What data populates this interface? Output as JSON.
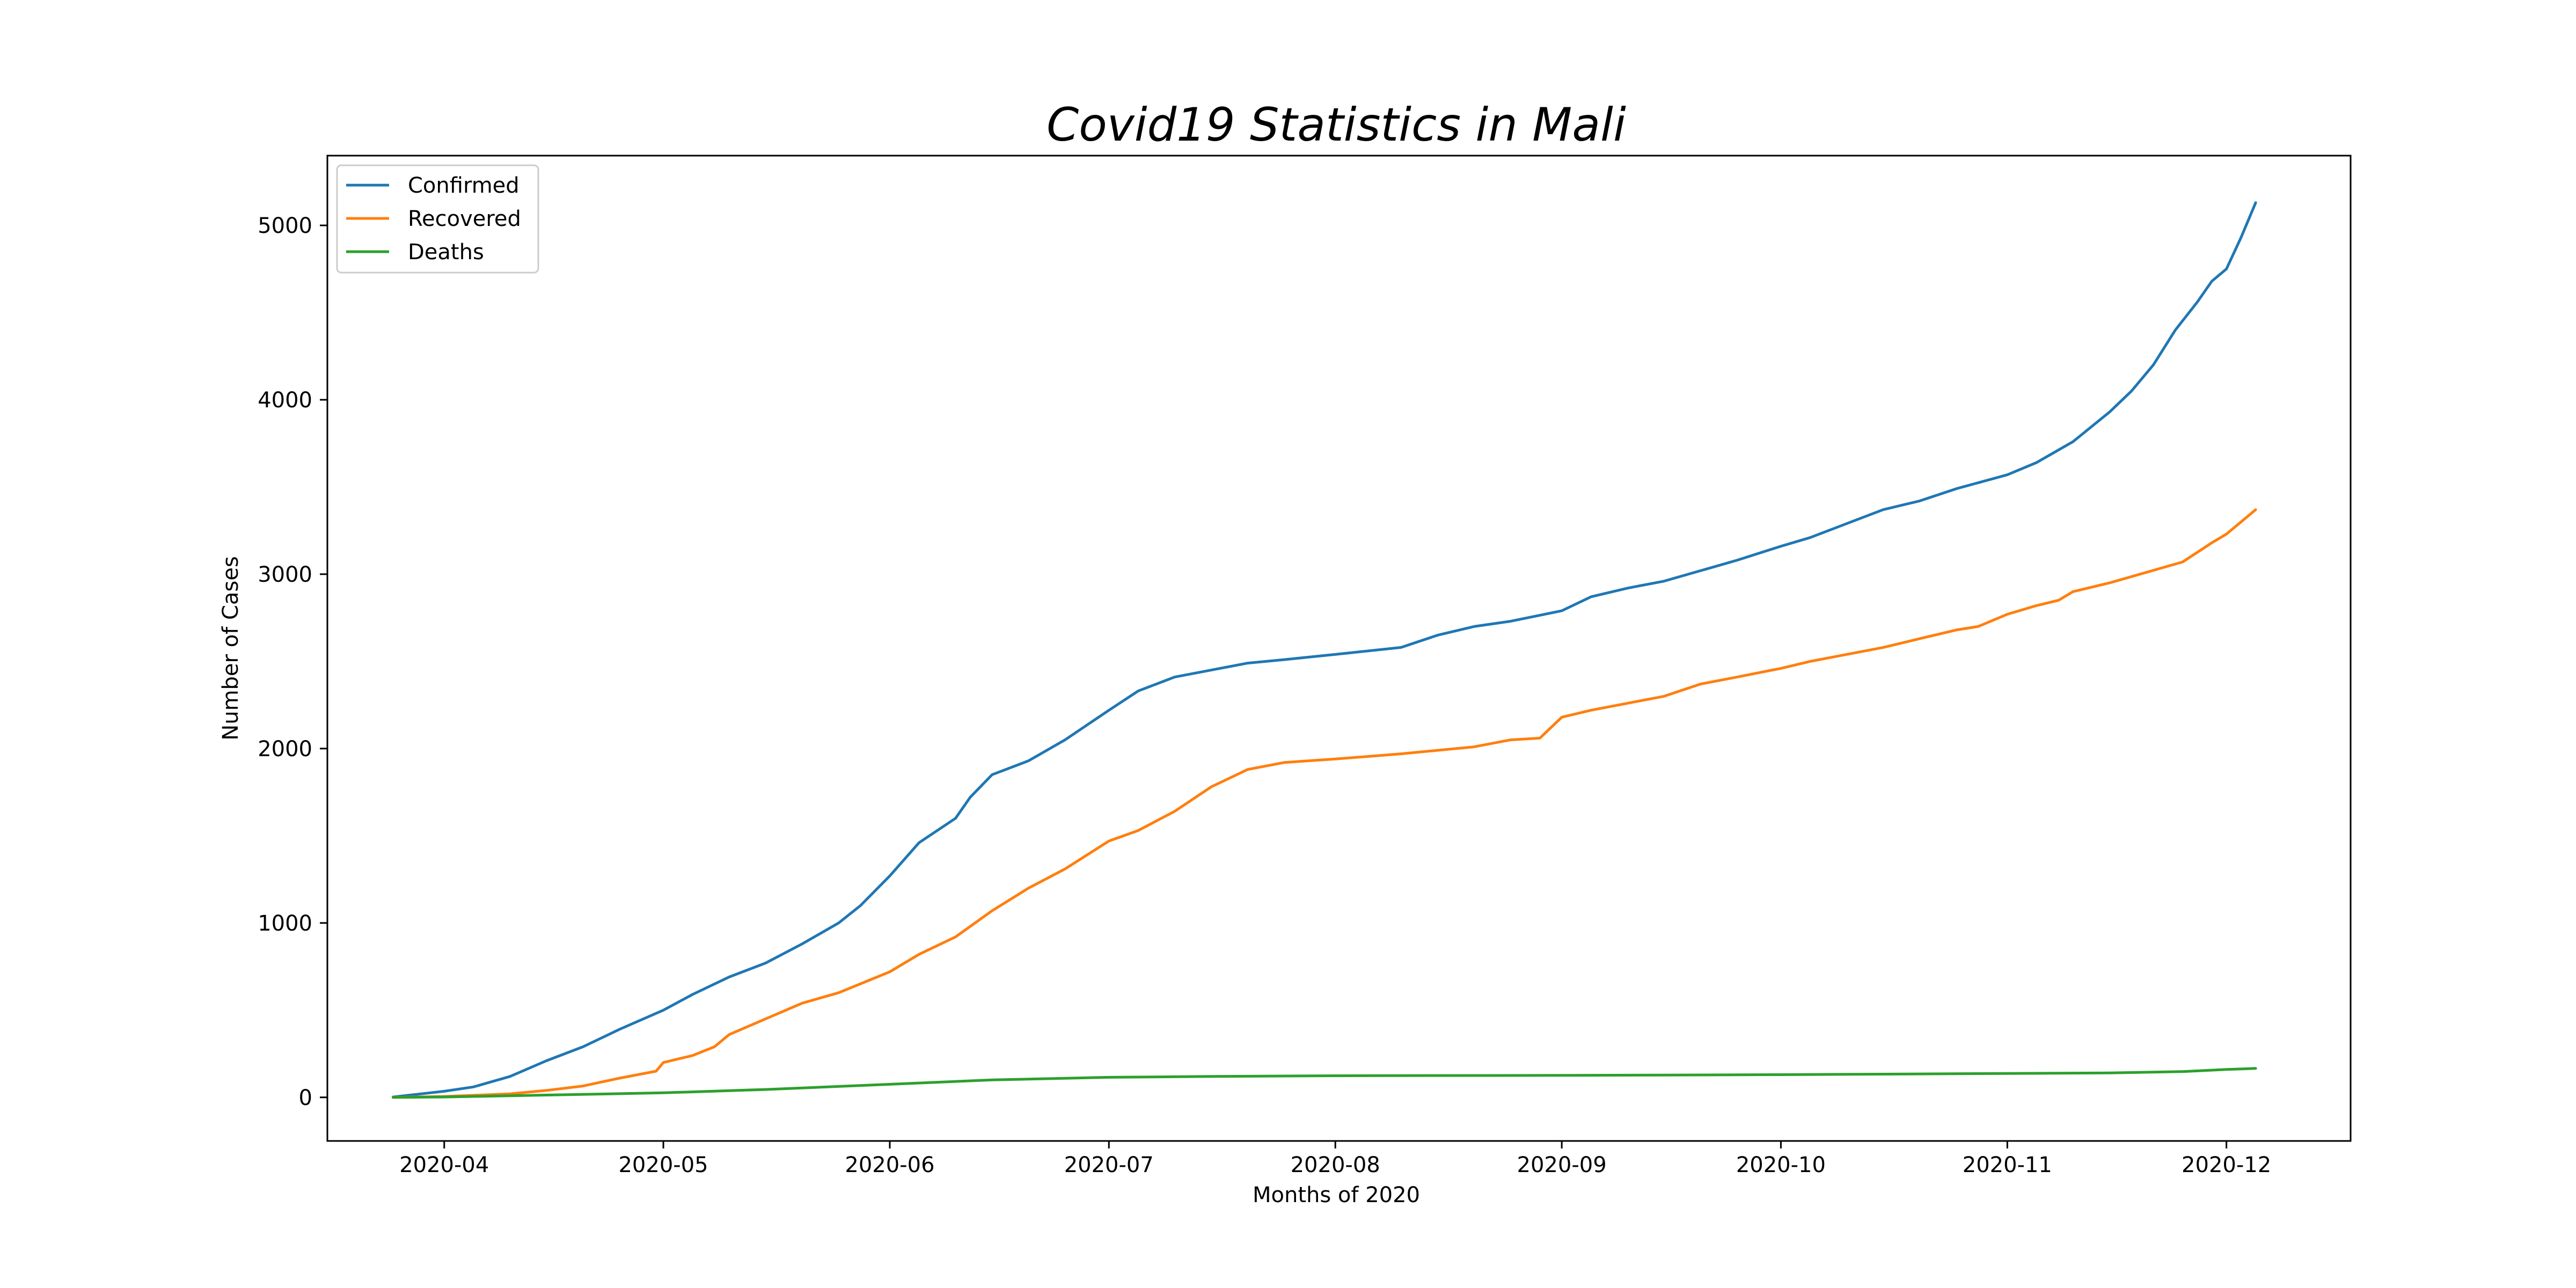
{
  "chart_data": {
    "type": "line",
    "title": "Covid19 Statistics in Mali",
    "xlabel": "Months of 2020",
    "ylabel": "Number of Cases",
    "x_ticks": [
      "2020-04",
      "2020-05",
      "2020-06",
      "2020-07",
      "2020-08",
      "2020-09",
      "2020-10",
      "2020-11",
      "2020-12"
    ],
    "x_tick_dates": [
      "2020-04-01",
      "2020-05-01",
      "2020-06-01",
      "2020-07-01",
      "2020-08-01",
      "2020-09-01",
      "2020-10-01",
      "2020-11-01",
      "2020-12-01"
    ],
    "y_ticks": [
      0,
      1000,
      2000,
      3000,
      4000,
      5000
    ],
    "xlim": [
      "2020-03-16",
      "2020-12-18"
    ],
    "ylim": [
      -250,
      5400
    ],
    "grid": false,
    "legend_position": "top-left",
    "series": [
      {
        "name": "Confirmed",
        "color": "#1f77b4",
        "points": [
          [
            "2020-03-25",
            2
          ],
          [
            "2020-04-01",
            35
          ],
          [
            "2020-04-05",
            60
          ],
          [
            "2020-04-10",
            120
          ],
          [
            "2020-04-15",
            210
          ],
          [
            "2020-04-20",
            290
          ],
          [
            "2020-04-25",
            390
          ],
          [
            "2020-05-01",
            500
          ],
          [
            "2020-05-05",
            590
          ],
          [
            "2020-05-10",
            690
          ],
          [
            "2020-05-15",
            770
          ],
          [
            "2020-05-20",
            880
          ],
          [
            "2020-05-25",
            1000
          ],
          [
            "2020-05-28",
            1100
          ],
          [
            "2020-06-01",
            1270
          ],
          [
            "2020-06-05",
            1460
          ],
          [
            "2020-06-10",
            1600
          ],
          [
            "2020-06-12",
            1720
          ],
          [
            "2020-06-15",
            1850
          ],
          [
            "2020-06-20",
            1930
          ],
          [
            "2020-06-25",
            2050
          ],
          [
            "2020-07-01",
            2220
          ],
          [
            "2020-07-05",
            2330
          ],
          [
            "2020-07-10",
            2410
          ],
          [
            "2020-07-15",
            2450
          ],
          [
            "2020-07-20",
            2490
          ],
          [
            "2020-07-25",
            2510
          ],
          [
            "2020-08-01",
            2540
          ],
          [
            "2020-08-10",
            2580
          ],
          [
            "2020-08-15",
            2650
          ],
          [
            "2020-08-20",
            2700
          ],
          [
            "2020-08-25",
            2730
          ],
          [
            "2020-09-01",
            2790
          ],
          [
            "2020-09-05",
            2870
          ],
          [
            "2020-09-10",
            2920
          ],
          [
            "2020-09-15",
            2960
          ],
          [
            "2020-09-20",
            3020
          ],
          [
            "2020-09-25",
            3080
          ],
          [
            "2020-10-01",
            3160
          ],
          [
            "2020-10-05",
            3210
          ],
          [
            "2020-10-10",
            3290
          ],
          [
            "2020-10-15",
            3370
          ],
          [
            "2020-10-20",
            3420
          ],
          [
            "2020-10-25",
            3490
          ],
          [
            "2020-11-01",
            3570
          ],
          [
            "2020-11-05",
            3640
          ],
          [
            "2020-11-10",
            3760
          ],
          [
            "2020-11-15",
            3930
          ],
          [
            "2020-11-18",
            4050
          ],
          [
            "2020-11-21",
            4200
          ],
          [
            "2020-11-24",
            4400
          ],
          [
            "2020-11-27",
            4560
          ],
          [
            "2020-11-29",
            4680
          ],
          [
            "2020-12-01",
            4750
          ],
          [
            "2020-12-03",
            4930
          ],
          [
            "2020-12-05",
            5130
          ]
        ]
      },
      {
        "name": "Recovered",
        "color": "#ff7f0e",
        "points": [
          [
            "2020-03-25",
            0
          ],
          [
            "2020-04-01",
            5
          ],
          [
            "2020-04-10",
            20
          ],
          [
            "2020-04-15",
            40
          ],
          [
            "2020-04-20",
            65
          ],
          [
            "2020-04-25",
            110
          ],
          [
            "2020-04-30",
            150
          ],
          [
            "2020-05-01",
            200
          ],
          [
            "2020-05-05",
            240
          ],
          [
            "2020-05-08",
            290
          ],
          [
            "2020-05-10",
            360
          ],
          [
            "2020-05-15",
            450
          ],
          [
            "2020-05-20",
            540
          ],
          [
            "2020-05-25",
            600
          ],
          [
            "2020-06-01",
            720
          ],
          [
            "2020-06-05",
            820
          ],
          [
            "2020-06-10",
            920
          ],
          [
            "2020-06-15",
            1070
          ],
          [
            "2020-06-20",
            1200
          ],
          [
            "2020-06-25",
            1310
          ],
          [
            "2020-07-01",
            1470
          ],
          [
            "2020-07-05",
            1530
          ],
          [
            "2020-07-10",
            1640
          ],
          [
            "2020-07-15",
            1780
          ],
          [
            "2020-07-20",
            1880
          ],
          [
            "2020-07-25",
            1920
          ],
          [
            "2020-08-01",
            1940
          ],
          [
            "2020-08-10",
            1970
          ],
          [
            "2020-08-20",
            2010
          ],
          [
            "2020-08-25",
            2050
          ],
          [
            "2020-08-29",
            2060
          ],
          [
            "2020-09-01",
            2180
          ],
          [
            "2020-09-05",
            2220
          ],
          [
            "2020-09-10",
            2260
          ],
          [
            "2020-09-15",
            2300
          ],
          [
            "2020-09-20",
            2370
          ],
          [
            "2020-09-25",
            2410
          ],
          [
            "2020-10-01",
            2460
          ],
          [
            "2020-10-05",
            2500
          ],
          [
            "2020-10-10",
            2540
          ],
          [
            "2020-10-15",
            2580
          ],
          [
            "2020-10-20",
            2630
          ],
          [
            "2020-10-25",
            2680
          ],
          [
            "2020-10-28",
            2700
          ],
          [
            "2020-11-01",
            2770
          ],
          [
            "2020-11-05",
            2820
          ],
          [
            "2020-11-08",
            2850
          ],
          [
            "2020-11-10",
            2900
          ],
          [
            "2020-11-15",
            2950
          ],
          [
            "2020-11-20",
            3010
          ],
          [
            "2020-11-25",
            3070
          ],
          [
            "2020-11-29",
            3180
          ],
          [
            "2020-12-01",
            3230
          ],
          [
            "2020-12-05",
            3370
          ]
        ]
      },
      {
        "name": "Deaths",
        "color": "#2ca02c",
        "points": [
          [
            "2020-03-25",
            0
          ],
          [
            "2020-04-01",
            2
          ],
          [
            "2020-04-15",
            13
          ],
          [
            "2020-05-01",
            26
          ],
          [
            "2020-05-15",
            45
          ],
          [
            "2020-06-01",
            75
          ],
          [
            "2020-06-15",
            100
          ],
          [
            "2020-07-01",
            115
          ],
          [
            "2020-07-15",
            120
          ],
          [
            "2020-08-01",
            124
          ],
          [
            "2020-08-15",
            125
          ],
          [
            "2020-09-01",
            126
          ],
          [
            "2020-09-15",
            128
          ],
          [
            "2020-10-01",
            130
          ],
          [
            "2020-10-15",
            133
          ],
          [
            "2020-11-01",
            137
          ],
          [
            "2020-11-15",
            140
          ],
          [
            "2020-11-25",
            148
          ],
          [
            "2020-12-01",
            160
          ],
          [
            "2020-12-05",
            166
          ]
        ]
      }
    ]
  }
}
